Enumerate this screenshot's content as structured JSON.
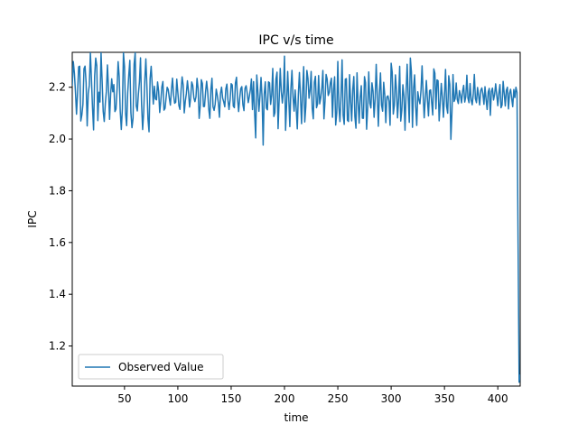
{
  "chart_data": {
    "type": "line",
    "title": "IPC v/s time",
    "xlabel": "time",
    "ylabel": "IPC",
    "xlim": [
      1,
      421
    ],
    "ylim": [
      1.045,
      2.335
    ],
    "x_ticks": [
      50,
      100,
      150,
      200,
      250,
      300,
      350,
      400
    ],
    "y_ticks": [
      1.2,
      1.4,
      1.6,
      1.8,
      2.0,
      2.2
    ],
    "y_tick_format": 1,
    "legend": {
      "position": "lower-left"
    },
    "grid": false,
    "series": [
      {
        "name": "Observed Value",
        "color": "#1f77b4",
        "segments": [
          {
            "x_start": 1,
            "x_end": 80,
            "mean": 2.18,
            "amplitude": 0.12,
            "period": 5.2
          },
          {
            "x_start": 80,
            "x_end": 170,
            "mean": 2.17,
            "amplitude": 0.05,
            "period": 4.6
          },
          {
            "x_start": 170,
            "x_end": 360,
            "mean": 2.16,
            "amplitude": 0.095,
            "period": 3.6
          },
          {
            "x_start": 360,
            "x_end": 417,
            "mean": 2.165,
            "amplitude": 0.045,
            "period": 3.4
          }
        ],
        "tail": [
          [
            417,
            2.2
          ],
          [
            418,
            2.18
          ],
          [
            419,
            1.6
          ],
          [
            420,
            1.06
          ],
          [
            421,
            1.09
          ]
        ]
      }
    ]
  }
}
